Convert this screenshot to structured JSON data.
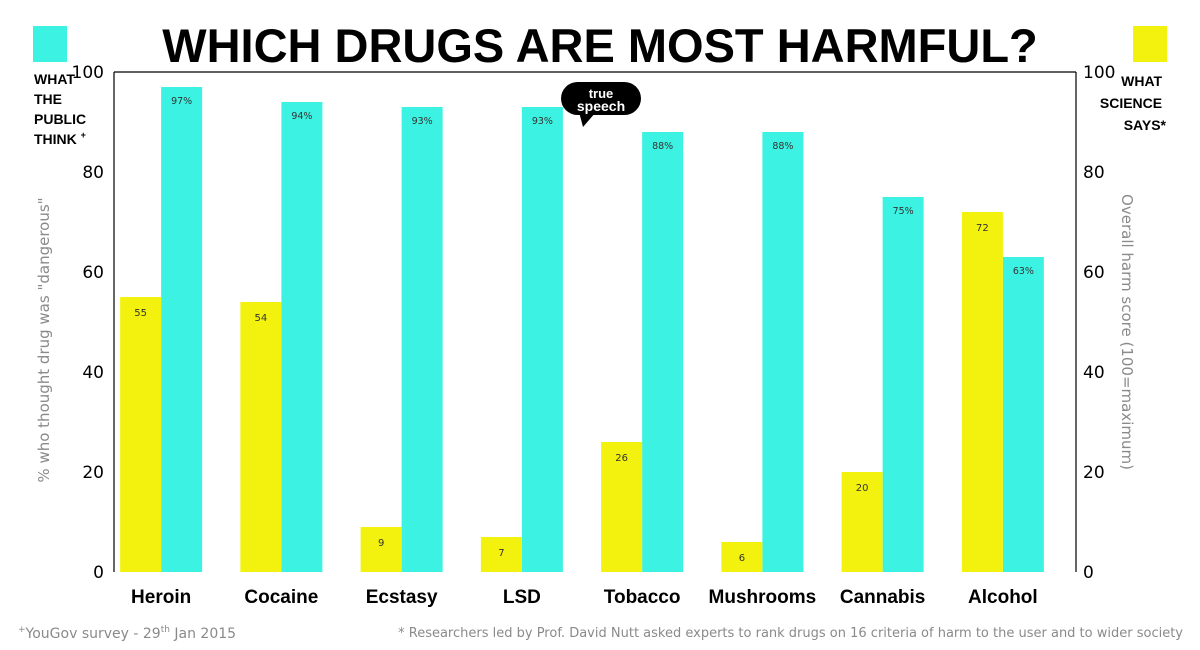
{
  "title": "WHICH DRUGS ARE MOST HARMFUL?",
  "logo": {
    "line1": "true",
    "line2": "speech"
  },
  "legend": {
    "public": {
      "lines": [
        "WHAT",
        "THE",
        "PUBLIC",
        "THINK"
      ],
      "mark": "+",
      "color": "#3cf2e2"
    },
    "science": {
      "lines": [
        "WHAT",
        "SCIENCE",
        "SAYS*"
      ],
      "color": "#f2f20e"
    }
  },
  "axes": {
    "left_label": "% who thought drug was \"dangerous\"",
    "right_label": "Overall harm score (100=maximum)",
    "ticks": [
      "0",
      "20",
      "40",
      "60",
      "80",
      "100"
    ]
  },
  "footnotes": {
    "left_mark": "+",
    "left_a": "YouGov survey - 29",
    "left_sup": "th",
    "left_b": " Jan 2015",
    "right": "* Researchers led by Prof. David Nutt asked experts to rank drugs on 16 criteria of harm to the user and to wider society"
  },
  "chart_data": {
    "type": "bar",
    "title": "WHICH DRUGS ARE MOST HARMFUL?",
    "categories": [
      "Heroin",
      "Cocaine",
      "Ecstasy",
      "LSD",
      "Tobacco",
      "Mushrooms",
      "Cannabis",
      "Alcohol"
    ],
    "series": [
      {
        "name": "WHAT THE PUBLIC THINK",
        "color": "#3cf2e2",
        "values": [
          97,
          94,
          93,
          93,
          88,
          88,
          75,
          63
        ],
        "labels": [
          "97%",
          "94%",
          "93%",
          "93%",
          "88%",
          "88%",
          "75%",
          "63%"
        ]
      },
      {
        "name": "WHAT SCIENCE SAYS*",
        "color": "#f2f20e",
        "values": [
          55,
          54,
          9,
          7,
          26,
          6,
          20,
          72
        ],
        "labels": [
          "55",
          "54",
          "9",
          "7",
          "26",
          "6",
          "20",
          "72"
        ]
      }
    ],
    "ylabel": "% who thought drug was \"dangerous\"",
    "y2label": "Overall harm score (100=maximum)",
    "ylim": [
      0,
      100
    ],
    "grid": false,
    "legend": "top-left and top-right corners"
  }
}
